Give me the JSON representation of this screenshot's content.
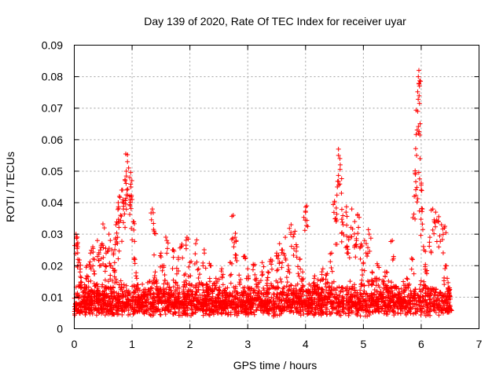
{
  "chart_data": {
    "type": "scatter",
    "title": "Day 139 of 2020, Rate Of TEC Index for receiver uyar",
    "xlabel": "GPS time / hours",
    "ylabel": "ROTI / TECUs",
    "xlim": [
      0,
      7
    ],
    "ylim": [
      0,
      0.09
    ],
    "x_ticks": [
      0,
      1,
      2,
      3,
      4,
      5,
      6,
      7
    ],
    "x_tick_labels": [
      "0",
      "1",
      "2",
      "3",
      "4",
      "5",
      "6",
      "7"
    ],
    "y_ticks": [
      0,
      0.01,
      0.02,
      0.03,
      0.04,
      0.05,
      0.06,
      0.07,
      0.08,
      0.09
    ],
    "y_tick_labels": [
      "0",
      "0.01",
      "0.02",
      "0.03",
      "0.04",
      "0.05",
      "0.06",
      "0.07",
      "0.08",
      "0.09"
    ],
    "grid": true,
    "marker": "+",
    "color": "#ff0000",
    "series": [
      {
        "name": "ROTI",
        "description": "Sampled representative points (figure contains several thousand samples)",
        "points": [
          [
            0.02,
            0.008
          ],
          [
            0.03,
            0.03
          ],
          [
            0.05,
            0.029
          ],
          [
            0.06,
            0.026
          ],
          [
            0.08,
            0.021
          ],
          [
            0.1,
            0.018
          ],
          [
            0.12,
            0.013
          ],
          [
            0.15,
            0.01
          ],
          [
            0.18,
            0.007
          ],
          [
            0.2,
            0.016
          ],
          [
            0.22,
            0.02
          ],
          [
            0.25,
            0.012
          ],
          [
            0.28,
            0.024
          ],
          [
            0.3,
            0.009
          ],
          [
            0.32,
            0.026
          ],
          [
            0.35,
            0.022
          ],
          [
            0.38,
            0.014
          ],
          [
            0.4,
            0.028
          ],
          [
            0.42,
            0.011
          ],
          [
            0.45,
            0.025
          ],
          [
            0.48,
            0.027
          ],
          [
            0.5,
            0.008
          ],
          [
            0.52,
            0.032
          ],
          [
            0.55,
            0.024
          ],
          [
            0.58,
            0.013
          ],
          [
            0.6,
            0.03
          ],
          [
            0.62,
            0.02
          ],
          [
            0.65,
            0.006
          ],
          [
            0.68,
            0.024
          ],
          [
            0.7,
            0.018
          ],
          [
            0.72,
            0.033
          ],
          [
            0.75,
            0.029
          ],
          [
            0.76,
            0.04
          ],
          [
            0.78,
            0.042
          ],
          [
            0.8,
            0.036
          ],
          [
            0.82,
            0.044
          ],
          [
            0.85,
            0.038
          ],
          [
            0.88,
            0.047
          ],
          [
            0.9,
            0.05
          ],
          [
            0.92,
            0.053
          ],
          [
            0.94,
            0.051
          ],
          [
            0.96,
            0.048
          ],
          [
            0.98,
            0.045
          ],
          [
            1.0,
            0.041
          ],
          [
            1.02,
            0.034
          ],
          [
            1.05,
            0.022
          ],
          [
            1.08,
            0.016
          ],
          [
            1.1,
            0.01
          ],
          [
            1.15,
            0.007
          ],
          [
            1.2,
            0.012
          ],
          [
            1.25,
            0.009
          ],
          [
            1.3,
            0.015
          ],
          [
            1.35,
            0.038
          ],
          [
            1.38,
            0.031
          ],
          [
            1.4,
            0.018
          ],
          [
            1.45,
            0.011
          ],
          [
            1.5,
            0.024
          ],
          [
            1.55,
            0.02
          ],
          [
            1.6,
            0.028
          ],
          [
            1.65,
            0.013
          ],
          [
            1.7,
            0.025
          ],
          [
            1.75,
            0.008
          ],
          [
            1.8,
            0.022
          ],
          [
            1.85,
            0.026
          ],
          [
            1.9,
            0.017
          ],
          [
            1.95,
            0.029
          ],
          [
            2.0,
            0.021
          ],
          [
            2.05,
            0.011
          ],
          [
            2.1,
            0.027
          ],
          [
            2.15,
            0.019
          ],
          [
            2.2,
            0.007
          ],
          [
            2.25,
            0.024
          ],
          [
            2.3,
            0.014
          ],
          [
            2.35,
            0.02
          ],
          [
            2.4,
            0.009
          ],
          [
            2.45,
            0.016
          ],
          [
            2.5,
            0.012
          ],
          [
            2.55,
            0.019
          ],
          [
            2.6,
            0.008
          ],
          [
            2.65,
            0.013
          ],
          [
            2.7,
            0.021
          ],
          [
            2.75,
            0.036
          ],
          [
            2.78,
            0.029
          ],
          [
            2.8,
            0.028
          ],
          [
            2.85,
            0.017
          ],
          [
            2.9,
            0.011
          ],
          [
            2.95,
            0.023
          ],
          [
            3.0,
            0.019
          ],
          [
            3.05,
            0.008
          ],
          [
            3.1,
            0.02
          ],
          [
            3.15,
            0.016
          ],
          [
            3.2,
            0.012
          ],
          [
            3.25,
            0.021
          ],
          [
            3.3,
            0.007
          ],
          [
            3.35,
            0.018
          ],
          [
            3.4,
            0.022
          ],
          [
            3.45,
            0.005
          ],
          [
            3.5,
            0.024
          ],
          [
            3.55,
            0.027
          ],
          [
            3.6,
            0.025
          ],
          [
            3.65,
            0.029
          ],
          [
            3.7,
            0.02
          ],
          [
            3.75,
            0.033
          ],
          [
            3.8,
            0.03
          ],
          [
            3.85,
            0.026
          ],
          [
            3.9,
            0.022
          ],
          [
            3.95,
            0.018
          ],
          [
            4.0,
            0.037
          ],
          [
            4.02,
            0.039
          ],
          [
            4.05,
            0.012
          ],
          [
            4.1,
            0.009
          ],
          [
            4.15,
            0.016
          ],
          [
            4.2,
            0.014
          ],
          [
            4.25,
            0.011
          ],
          [
            4.3,
            0.019
          ],
          [
            4.35,
            0.017
          ],
          [
            4.4,
            0.013
          ],
          [
            4.45,
            0.024
          ],
          [
            4.5,
            0.04
          ],
          [
            4.52,
            0.035
          ],
          [
            4.55,
            0.045
          ],
          [
            4.57,
            0.055
          ],
          [
            4.6,
            0.052
          ],
          [
            4.62,
            0.043
          ],
          [
            4.65,
            0.033
          ],
          [
            4.7,
            0.037
          ],
          [
            4.72,
            0.026
          ],
          [
            4.75,
            0.029
          ],
          [
            4.8,
            0.038
          ],
          [
            4.85,
            0.034
          ],
          [
            4.88,
            0.028
          ],
          [
            4.9,
            0.036
          ],
          [
            4.95,
            0.026
          ],
          [
            5.0,
            0.021
          ],
          [
            5.05,
            0.027
          ],
          [
            5.1,
            0.03
          ],
          [
            5.15,
            0.018
          ],
          [
            5.2,
            0.016
          ],
          [
            5.25,
            0.02
          ],
          [
            5.3,
            0.011
          ],
          [
            5.35,
            0.015
          ],
          [
            5.4,
            0.018
          ],
          [
            5.45,
            0.009
          ],
          [
            5.5,
            0.028
          ],
          [
            5.55,
            0.013
          ],
          [
            5.6,
            0.01
          ],
          [
            5.65,
            0.008
          ],
          [
            5.7,
            0.012
          ],
          [
            5.75,
            0.016
          ],
          [
            5.8,
            0.009
          ],
          [
            5.85,
            0.022
          ],
          [
            5.88,
            0.042
          ],
          [
            5.9,
            0.049
          ],
          [
            5.92,
            0.055
          ],
          [
            5.94,
            0.069
          ],
          [
            5.95,
            0.08
          ],
          [
            5.96,
            0.082
          ],
          [
            5.97,
            0.077
          ],
          [
            5.98,
            0.054
          ],
          [
            6.0,
            0.044
          ],
          [
            6.02,
            0.038
          ],
          [
            6.05,
            0.025
          ],
          [
            6.08,
            0.018
          ],
          [
            6.1,
            0.013
          ],
          [
            6.15,
            0.029
          ],
          [
            6.2,
            0.038
          ],
          [
            6.25,
            0.037
          ],
          [
            6.3,
            0.034
          ],
          [
            6.35,
            0.033
          ],
          [
            6.4,
            0.032
          ],
          [
            6.42,
            0.02
          ],
          [
            6.45,
            0.016
          ],
          [
            6.48,
            0.012
          ],
          [
            6.5,
            0.007
          ]
        ],
        "baseline": {
          "description": "Dense band of low values (approx. 0.004-0.016) across 0-6.5 h",
          "x_range": [
            0,
            6.5
          ],
          "y_range": [
            0.004,
            0.016
          ]
        }
      }
    ]
  }
}
